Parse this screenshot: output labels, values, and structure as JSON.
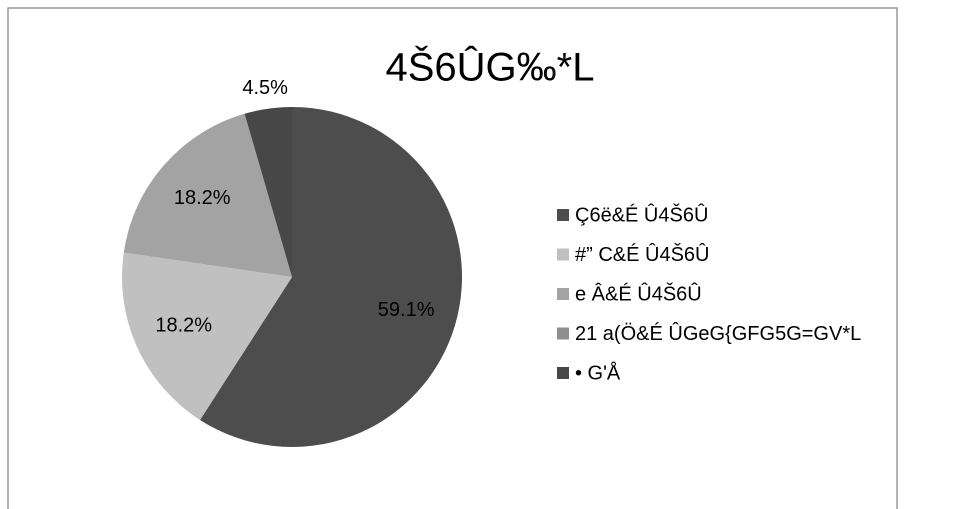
{
  "chart_data": {
    "type": "pie",
    "title": "4Š6ÛG‰*L",
    "categories": [
      "Ç6ë&É Û4Š6Û",
      "#” C&É Û4Š6Û",
      "e Â&É Û4Š6Û",
      "21 a(Ö&É ÛGeG{GFG5G=GV*L",
      "• G'Å"
    ],
    "values": [
      59.1,
      18.2,
      18.2,
      0,
      4.5
    ],
    "value_labels": [
      "59.1%",
      "18.2%",
      "18.2%",
      null,
      "4.5%"
    ],
    "colors": [
      "#4d4d4d",
      "#c0c0c0",
      "#a3a3a3",
      "#8f8f8f",
      "#474747"
    ],
    "legend": "right"
  }
}
